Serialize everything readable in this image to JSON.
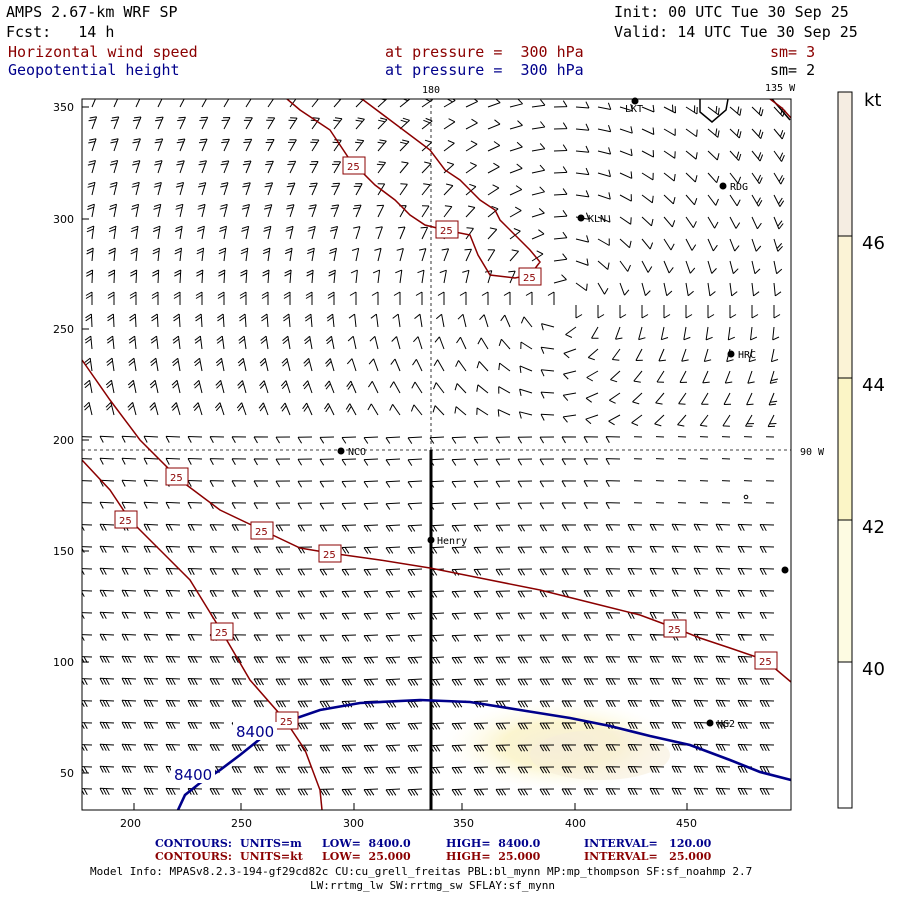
{
  "header": {
    "model": "AMPS 2.67-km WRF SP",
    "init": "Init: 00 UTC Tue 30 Sep 25",
    "fcst": "Fcst:   14 h",
    "valid": "Valid: 14 UTC Tue 30 Sep 25",
    "field1": "Horizontal wind speed",
    "field1_level": "at pressure =  300 hPa",
    "field1_sm": "sm= 3",
    "field2": "Geopotential height",
    "field2_level": "at pressure =  300 hPa",
    "field2_sm": "sm= 2"
  },
  "map": {
    "x_ticks": [
      "200",
      "250",
      "300",
      "350",
      "400",
      "450"
    ],
    "y_ticks": [
      "350",
      "300",
      "250",
      "200",
      "150",
      "100",
      "50"
    ],
    "meridian_top": "180",
    "meridian_top_right": "135 W",
    "meridian_right": "90 W",
    "stations": [
      "LKT",
      "RDG",
      "KLN",
      "HRC",
      "NCO",
      "Henry",
      "HG2"
    ],
    "wind_contour_label": "25",
    "height_contour_label": "8400"
  },
  "colorbar": {
    "unit": "kt",
    "labels": [
      "46",
      "44",
      "42",
      "40"
    ],
    "colors": [
      "#f5ede2",
      "#fbf3d6",
      "#fbf5c6",
      "#fdfbe2",
      "#ffffff"
    ]
  },
  "footer": {
    "c1_label": "CONTOURS:",
    "c1_units": "UNITS=m",
    "c1_low": "LOW=  8400.0",
    "c1_high": "HIGH=  8400.0",
    "c1_interval": "INTERVAL=   120.00",
    "c2_label": "CONTOURS:",
    "c2_units": "UNITS=kt",
    "c2_low": "LOW=  25.000",
    "c2_high": "HIGH=  25.000",
    "c2_interval": "INTERVAL=   25.000",
    "model_info_1": "Model Info: MPASv8.2.3-194-gf29cd82c CU:cu_grell_freitas PBL:bl_mynn MP:mp_thompson SF:sf_noahmp 2.7",
    "model_info_2": "LW:rrtmg_lw SW:rrtmg_sw SFLAY:sf_mynn"
  }
}
